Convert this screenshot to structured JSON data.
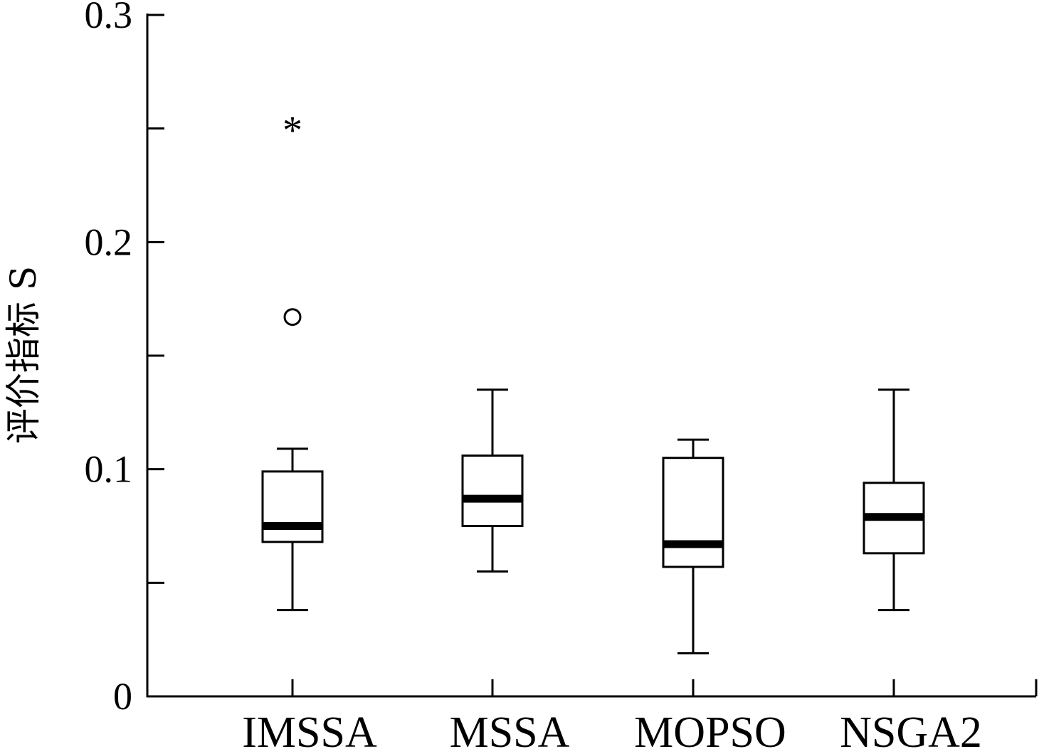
{
  "chart_data": {
    "type": "box",
    "title": "",
    "xlabel": "",
    "ylabel": "评价指标 S",
    "ylim": [
      0,
      0.3
    ],
    "y_ticks": [
      {
        "value": 0,
        "label": "0"
      },
      {
        "value": 0.05,
        "label": ""
      },
      {
        "value": 0.1,
        "label": "0.1"
      },
      {
        "value": 0.15,
        "label": ""
      },
      {
        "value": 0.2,
        "label": "0.2"
      },
      {
        "value": 0.25,
        "label": ""
      },
      {
        "value": 0.3,
        "label": "0.3"
      }
    ],
    "categories": [
      "IMSSA",
      "MSSA",
      "MOPSO",
      "NSGA2"
    ],
    "boxes": [
      {
        "name": "IMSSA",
        "whisker_low": 0.038,
        "q1": 0.068,
        "median": 0.075,
        "q3": 0.099,
        "whisker_high": 0.109,
        "outliers": [
          {
            "value": 0.167,
            "marker": "circle"
          },
          {
            "value": 0.251,
            "marker": "star"
          }
        ]
      },
      {
        "name": "MSSA",
        "whisker_low": 0.055,
        "q1": 0.075,
        "median": 0.087,
        "q3": 0.106,
        "whisker_high": 0.135,
        "outliers": []
      },
      {
        "name": "MOPSO",
        "whisker_low": 0.019,
        "q1": 0.057,
        "median": 0.067,
        "q3": 0.105,
        "whisker_high": 0.113,
        "outliers": []
      },
      {
        "name": "NSGA2",
        "whisker_low": 0.038,
        "q1": 0.063,
        "median": 0.079,
        "q3": 0.094,
        "whisker_high": 0.135,
        "outliers": []
      }
    ],
    "grid": false,
    "legend": "none"
  }
}
